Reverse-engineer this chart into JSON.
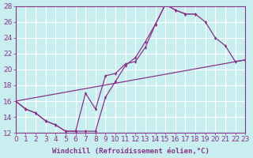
{
  "xlabel": "Windchill (Refroidissement éolien,°C)",
  "bg_color": "#c8eef0",
  "grid_color": "#ffffff",
  "line_color": "#883388",
  "xlim": [
    0,
    23
  ],
  "ylim": [
    12,
    28
  ],
  "xticks": [
    0,
    1,
    2,
    3,
    4,
    5,
    6,
    7,
    8,
    9,
    10,
    11,
    12,
    13,
    14,
    15,
    16,
    17,
    18,
    19,
    20,
    21,
    22,
    23
  ],
  "yticks": [
    12,
    14,
    16,
    18,
    20,
    22,
    24,
    26,
    28
  ],
  "line1_x": [
    0,
    1,
    2,
    3,
    4,
    5,
    6,
    7,
    8,
    9,
    10,
    11,
    12,
    13,
    14,
    15,
    16,
    17,
    18,
    19,
    20,
    21,
    22,
    23
  ],
  "line1_y": [
    16,
    15,
    14.5,
    13.5,
    13,
    12.2,
    12.2,
    17,
    15,
    19.2,
    19.5,
    20.7,
    21.0,
    22.8,
    25.7,
    28.2,
    27.5,
    27.0,
    27.0,
    26.0,
    24.0,
    23.0,
    21.0,
    21.2
  ],
  "line2_x": [
    0,
    1,
    2,
    3,
    4,
    5,
    6,
    7,
    8,
    9,
    10,
    11,
    12,
    13,
    14,
    15,
    16,
    17,
    18
  ],
  "line2_y": [
    16,
    15,
    14.5,
    13.5,
    13,
    12.2,
    12.2,
    12.2,
    12.2,
    16.5,
    18.5,
    20.5,
    21.5,
    23.5,
    25.7,
    28.2,
    27.5,
    27.0,
    27.0
  ],
  "line3_x": [
    0,
    23
  ],
  "line3_y": [
    16,
    21.2
  ],
  "marker_size": 2.5,
  "lw": 0.9,
  "font_size": 6.5
}
